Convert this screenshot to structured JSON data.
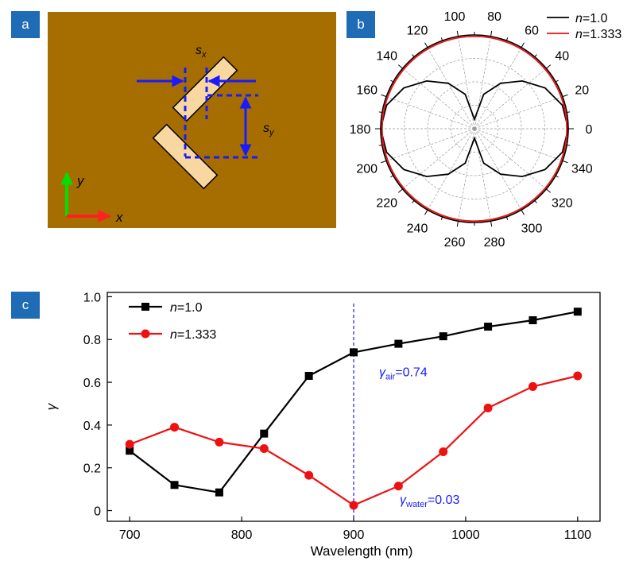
{
  "panels": {
    "a": {
      "label": "a"
    },
    "b": {
      "label": "b"
    },
    "c": {
      "label": "c"
    }
  },
  "colors": {
    "substrate": "#a66e00",
    "rod": "#f8d8a0",
    "dim_arrow": "#1a1aff",
    "y_axis_arrow": "#00e000",
    "x_axis_arrow": "#ff2020",
    "series_air": "#000000",
    "series_water": "#ee1111",
    "guide_line": "#1a1aff"
  },
  "schematic": {
    "labels": {
      "sx": "s",
      "sx_sub": "x",
      "sy": "s",
      "sy_sub": "y",
      "axis_y": "y",
      "axis_x": "x"
    }
  },
  "chart_data": [
    {
      "type": "polar-line",
      "panel": "b",
      "angle_ticks": [
        "0",
        "20",
        "40",
        "60",
        "80",
        "100",
        "120",
        "140",
        "160",
        "180",
        "200",
        "220",
        "240",
        "260",
        "280",
        "300",
        "320",
        "340"
      ],
      "angle_values": [
        0,
        20,
        40,
        60,
        80,
        100,
        120,
        140,
        160,
        180,
        200,
        220,
        240,
        260,
        280,
        300,
        320,
        340
      ],
      "rlim": [
        0,
        1
      ],
      "grid": true,
      "legend_position": "top-right",
      "series": [
        {
          "name": "n=1.0",
          "name_italic": "n",
          "name_rest": "=1.0",
          "color": "#000000",
          "angles": [
            0,
            15,
            30,
            45,
            60,
            75,
            90,
            105,
            120,
            135,
            150,
            165,
            180,
            195,
            210,
            225,
            240,
            255,
            270,
            285,
            300,
            315,
            330,
            345
          ],
          "values": [
            1.0,
            0.97,
            0.87,
            0.72,
            0.56,
            0.38,
            0.1,
            0.38,
            0.56,
            0.72,
            0.87,
            0.97,
            1.0,
            0.97,
            0.87,
            0.72,
            0.56,
            0.38,
            0.1,
            0.38,
            0.56,
            0.72,
            0.87,
            0.97
          ]
        },
        {
          "name": "n=1.333",
          "name_italic": "n",
          "name_rest": "=1.333",
          "color": "#ee1111",
          "angles": [
            0,
            30,
            60,
            90,
            120,
            150,
            180,
            210,
            240,
            270,
            300,
            330
          ],
          "values": [
            0.985,
            0.985,
            0.985,
            0.985,
            0.985,
            0.985,
            0.985,
            0.985,
            0.985,
            0.985,
            0.985,
            0.985
          ]
        }
      ]
    },
    {
      "type": "line",
      "panel": "c",
      "xlabel": "Wavelength (nm)",
      "ylabel": "γ",
      "xlim": [
        680,
        1120
      ],
      "ylim": [
        -0.05,
        1.02
      ],
      "xticks": [
        700,
        800,
        900,
        1000,
        1100
      ],
      "yticks": [
        0,
        0.2,
        0.4,
        0.6,
        0.8,
        1.0
      ],
      "ytick_labels": [
        "0",
        "0.2",
        "0.4",
        "0.6",
        "0.8",
        "1.0"
      ],
      "legend_position": "top-left",
      "x": [
        700,
        740,
        780,
        820,
        860,
        900,
        940,
        980,
        1020,
        1060,
        1100
      ],
      "series": [
        {
          "name": "n=1.0",
          "name_italic": "n",
          "name_rest": "=1.0",
          "color": "#000000",
          "marker": "square",
          "values": [
            0.28,
            0.12,
            0.085,
            0.36,
            0.63,
            0.74,
            0.78,
            0.815,
            0.86,
            0.89,
            0.93
          ]
        },
        {
          "name": "n=1.333",
          "name_italic": "n",
          "name_rest": "=1.333",
          "color": "#ee1111",
          "marker": "circle",
          "values": [
            0.31,
            0.39,
            0.32,
            0.29,
            0.165,
            0.025,
            0.115,
            0.275,
            0.48,
            0.58,
            0.63
          ]
        }
      ],
      "vline_x": 900,
      "annotations": [
        {
          "symbol": "γ",
          "sub": "air",
          "text": "=0.74",
          "x": 900,
          "y": 0.74
        },
        {
          "symbol": "γ",
          "sub": "water",
          "text": "=0.03",
          "x": 900,
          "y": 0.025
        }
      ]
    }
  ]
}
